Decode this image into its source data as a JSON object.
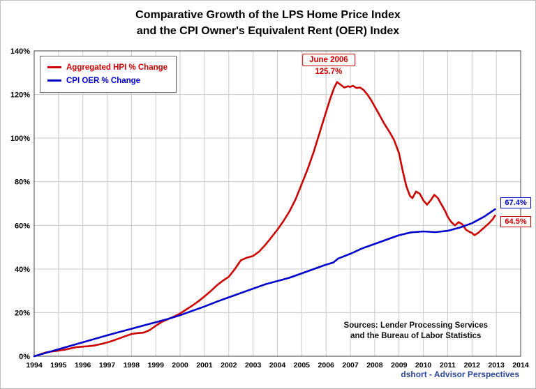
{
  "header": {
    "title_line1": "Comparative Growth of the LPS Home Price Index",
    "title_line2": "and the CPI Owner's Equivalent Rent (OER) Index"
  },
  "notes": {
    "sources_line1": "Sources: Lender Processing Services",
    "sources_line2": "and the Bureau of Labor Statistics",
    "credit": "dshort - Advisor Perspectives"
  },
  "chart_data": {
    "type": "line",
    "title": "Comparative Growth of the LPS Home Price Index and the CPI Owner's Equivalent Rent (OER) Index",
    "xlabel": "",
    "ylabel": "",
    "xlim": [
      1994,
      2014
    ],
    "ylim": [
      0,
      140
    ],
    "x_tick_step": 1,
    "y_tick_step": 20,
    "y_tick_suffix": "%",
    "grid": true,
    "legend_position": "top-left",
    "colors": {
      "hpi": "#CC0000",
      "oer": "#0000CC",
      "grid": "#c9c9c9",
      "frame": "#404040",
      "credit_blue": "#2B479C"
    },
    "series": [
      {
        "name": "Aggregated HPI % Change",
        "color": "#CC0000",
        "points": [
          [
            1994.0,
            0
          ],
          [
            1994.17,
            0.5
          ],
          [
            1994.33,
            1.2
          ],
          [
            1994.5,
            1.8
          ],
          [
            1994.75,
            2.2
          ],
          [
            1995.0,
            2.6
          ],
          [
            1995.25,
            3.0
          ],
          [
            1995.5,
            3.6
          ],
          [
            1995.75,
            4.2
          ],
          [
            1996.0,
            4.4
          ],
          [
            1996.25,
            4.6
          ],
          [
            1996.5,
            5.0
          ],
          [
            1996.75,
            5.6
          ],
          [
            1997.0,
            6.3
          ],
          [
            1997.25,
            7.2
          ],
          [
            1997.5,
            8.2
          ],
          [
            1997.75,
            9.2
          ],
          [
            1998.0,
            10.2
          ],
          [
            1998.25,
            10.6
          ],
          [
            1998.5,
            10.8
          ],
          [
            1998.75,
            12.0
          ],
          [
            1999.0,
            14.0
          ],
          [
            1999.25,
            15.8
          ],
          [
            1999.5,
            17.0
          ],
          [
            1999.75,
            18.2
          ],
          [
            2000.0,
            19.6
          ],
          [
            2000.25,
            21.4
          ],
          [
            2000.5,
            23.2
          ],
          [
            2000.75,
            25.2
          ],
          [
            2001.0,
            27.4
          ],
          [
            2001.25,
            29.8
          ],
          [
            2001.5,
            32.4
          ],
          [
            2001.75,
            34.6
          ],
          [
            2002.0,
            36.4
          ],
          [
            2002.25,
            40.0
          ],
          [
            2002.5,
            44.0
          ],
          [
            2002.75,
            45.2
          ],
          [
            2003.0,
            46.0
          ],
          [
            2003.25,
            48.0
          ],
          [
            2003.5,
            51.0
          ],
          [
            2003.75,
            54.5
          ],
          [
            2004.0,
            58.0
          ],
          [
            2004.25,
            62.0
          ],
          [
            2004.5,
            66.5
          ],
          [
            2004.75,
            72.0
          ],
          [
            2005.0,
            79.0
          ],
          [
            2005.25,
            86.0
          ],
          [
            2005.5,
            94.0
          ],
          [
            2005.75,
            103.0
          ],
          [
            2006.0,
            112.0
          ],
          [
            2006.17,
            118.0
          ],
          [
            2006.33,
            123.0
          ],
          [
            2006.45,
            125.7
          ],
          [
            2006.6,
            124.5
          ],
          [
            2006.75,
            123.2
          ],
          [
            2006.9,
            123.8
          ],
          [
            2007.0,
            123.5
          ],
          [
            2007.1,
            124.0
          ],
          [
            2007.25,
            123.0
          ],
          [
            2007.4,
            123.2
          ],
          [
            2007.55,
            122.0
          ],
          [
            2007.7,
            120.0
          ],
          [
            2007.85,
            117.5
          ],
          [
            2008.0,
            114.5
          ],
          [
            2008.2,
            110.5
          ],
          [
            2008.4,
            106.5
          ],
          [
            2008.6,
            103.0
          ],
          [
            2008.8,
            99.0
          ],
          [
            2009.0,
            93.0
          ],
          [
            2009.15,
            85.0
          ],
          [
            2009.3,
            78.0
          ],
          [
            2009.45,
            73.5
          ],
          [
            2009.55,
            72.5
          ],
          [
            2009.7,
            75.5
          ],
          [
            2009.85,
            74.5
          ],
          [
            2010.0,
            71.5
          ],
          [
            2010.15,
            69.5
          ],
          [
            2010.3,
            71.5
          ],
          [
            2010.45,
            74.0
          ],
          [
            2010.6,
            72.5
          ],
          [
            2010.75,
            69.5
          ],
          [
            2010.9,
            66.5
          ],
          [
            2011.0,
            64.0
          ],
          [
            2011.15,
            61.5
          ],
          [
            2011.3,
            60.0
          ],
          [
            2011.45,
            61.5
          ],
          [
            2011.6,
            60.5
          ],
          [
            2011.75,
            58.0
          ],
          [
            2011.9,
            57.0
          ],
          [
            2012.0,
            56.5
          ],
          [
            2012.1,
            55.5
          ],
          [
            2012.25,
            56.5
          ],
          [
            2012.4,
            58.0
          ],
          [
            2012.55,
            59.5
          ],
          [
            2012.7,
            61.0
          ],
          [
            2012.85,
            62.8
          ],
          [
            2012.95,
            64.5
          ]
        ]
      },
      {
        "name": "CPI OER % Change",
        "color": "#0000CC",
        "points": [
          [
            1994.0,
            0
          ],
          [
            1994.5,
            1.6
          ],
          [
            1995.0,
            3.2
          ],
          [
            1995.5,
            4.8
          ],
          [
            1996.0,
            6.4
          ],
          [
            1996.5,
            8.0
          ],
          [
            1997.0,
            9.6
          ],
          [
            1997.5,
            11.1
          ],
          [
            1998.0,
            12.6
          ],
          [
            1998.5,
            14.1
          ],
          [
            1999.0,
            15.6
          ],
          [
            1999.5,
            17.1
          ],
          [
            2000.0,
            18.8
          ],
          [
            2000.5,
            20.8
          ],
          [
            2001.0,
            22.8
          ],
          [
            2001.5,
            25.0
          ],
          [
            2002.0,
            27.0
          ],
          [
            2002.5,
            29.0
          ],
          [
            2003.0,
            31.0
          ],
          [
            2003.5,
            33.0
          ],
          [
            2004.0,
            34.5
          ],
          [
            2004.5,
            36.0
          ],
          [
            2005.0,
            38.0
          ],
          [
            2005.5,
            40.0
          ],
          [
            2006.0,
            42.0
          ],
          [
            2006.3,
            43.0
          ],
          [
            2006.5,
            44.8
          ],
          [
            2007.0,
            47.0
          ],
          [
            2007.5,
            49.5
          ],
          [
            2008.0,
            51.5
          ],
          [
            2008.5,
            53.5
          ],
          [
            2009.0,
            55.5
          ],
          [
            2009.5,
            56.8
          ],
          [
            2010.0,
            57.2
          ],
          [
            2010.5,
            56.9
          ],
          [
            2011.0,
            57.5
          ],
          [
            2011.5,
            59.0
          ],
          [
            2012.0,
            61.0
          ],
          [
            2012.5,
            64.0
          ],
          [
            2012.95,
            67.4
          ]
        ]
      }
    ],
    "peak_annotation": {
      "line1": "June 2006",
      "line2": "125.7%",
      "x": 2006.45,
      "y": 125.7
    },
    "end_labels": [
      {
        "text": "67.4%",
        "color": "#0000CC",
        "y": 67.4
      },
      {
        "text": "64.5%",
        "color": "#CC0000",
        "y": 64.5
      }
    ]
  }
}
